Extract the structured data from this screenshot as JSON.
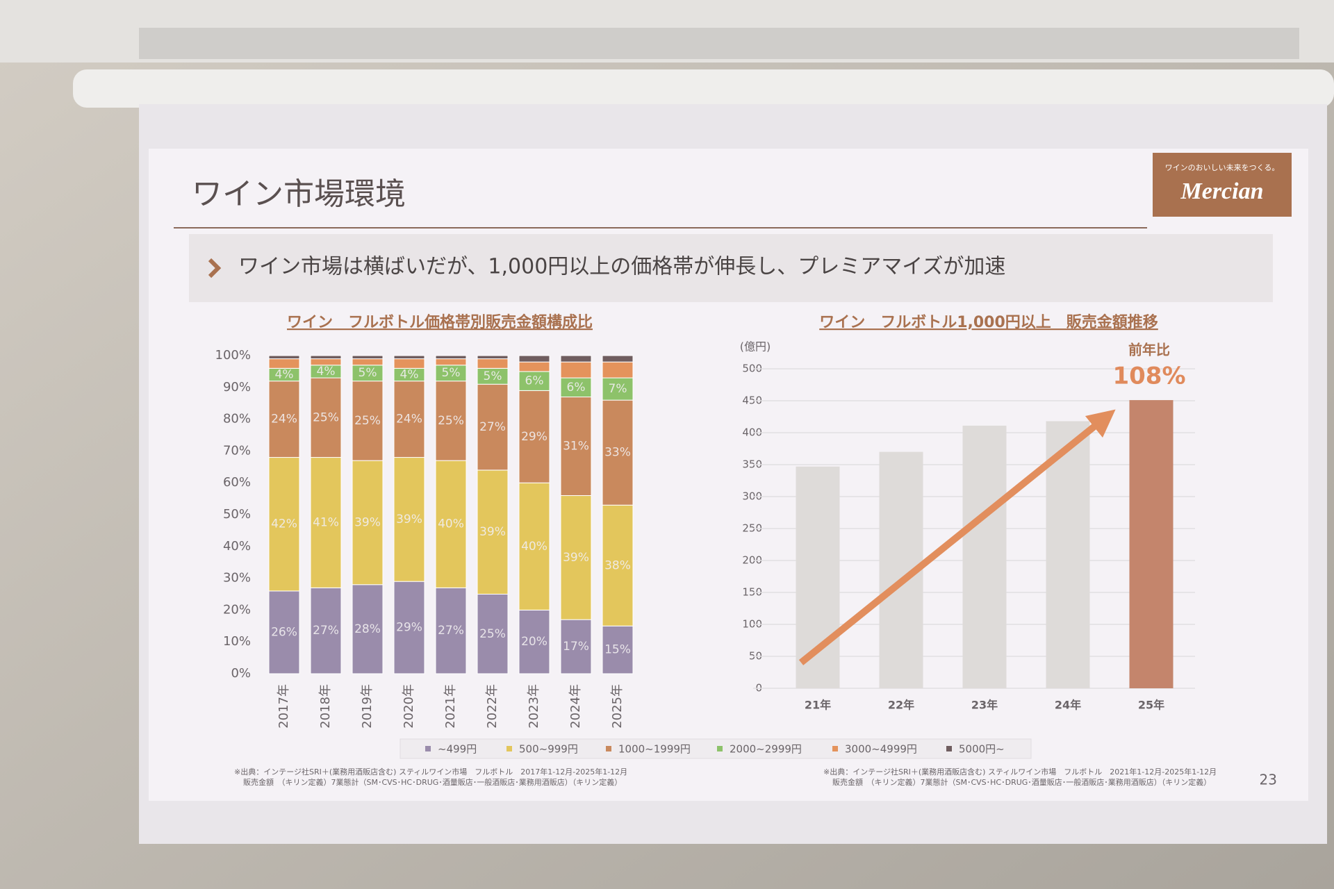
{
  "slide": {
    "title": "ワイン市場環境",
    "bullet": "ワイン市場は横ばいだが、1,000円以上の価格帯が伸長し、プレミアマイズが加速",
    "logo_tagline": "ワインのおいしい未来をつくる。",
    "logo": "Mercian",
    "page_number": "23",
    "footnotes": {
      "left": [
        "※出典：インテージ社SRI＋(業務用酒販店含む) スティルワイン市場　フルボトル　2017年1-12月-2025年1-12月",
        "販売金額　（キリン定義）7業態計（SM･CVS･HC･DRUG･酒量販店･一般酒販店･業務用酒販店）（キリン定義）"
      ],
      "right": [
        "※出典：インテージ社SRI＋(業務用酒販店含む) スティルワイン市場　フルボトル　2021年1-12月-2025年1-12月",
        "販売金額　（キリン定義）7業態計（SM･CVS･HC･DRUG･酒量販店･一般酒販店･業務用酒販店）（キリン定義）"
      ]
    }
  },
  "chart_data": [
    {
      "type": "stacked_bar",
      "title": "ワイン　フルボトル価格帯別販売金額構成比",
      "categories": [
        "2017年",
        "2018年",
        "2019年",
        "2020年",
        "2021年",
        "2022年",
        "2023年",
        "2024年",
        "2025年"
      ],
      "ylim": [
        0,
        100
      ],
      "yticks": [
        {
          "value": 0,
          "label": "0%"
        },
        {
          "value": 10,
          "label": "10%"
        },
        {
          "value": 20,
          "label": "20%"
        },
        {
          "value": 30,
          "label": "30%"
        },
        {
          "value": 40,
          "label": "40%"
        },
        {
          "value": 50,
          "label": "50%"
        },
        {
          "value": 60,
          "label": "60%"
        },
        {
          "value": 70,
          "label": "70%"
        },
        {
          "value": 80,
          "label": "80%"
        },
        {
          "value": 90,
          "label": "90%"
        },
        {
          "value": 100,
          "label": "100%"
        }
      ],
      "legend": "bottom",
      "series": [
        {
          "name": "~499円",
          "color": "#9a8cab",
          "values": [
            26,
            27,
            28,
            29,
            27,
            25,
            20,
            17,
            15
          ],
          "value_labels": [
            "26%",
            "27%",
            "28%",
            "29%",
            "27%",
            "25%",
            "20%",
            "17%",
            "15%"
          ]
        },
        {
          "name": "500~999円",
          "color": "#e3c65c",
          "values": [
            42,
            41,
            39,
            39,
            40,
            39,
            40,
            39,
            38
          ],
          "value_labels": [
            "42%",
            "41%",
            "39%",
            "39%",
            "40%",
            "39%",
            "40%",
            "39%",
            "38%"
          ]
        },
        {
          "name": "1000~1999円",
          "color": "#c9895d",
          "values": [
            24,
            25,
            25,
            24,
            25,
            27,
            29,
            31,
            33
          ],
          "value_labels": [
            "24%",
            "25%",
            "25%",
            "24%",
            "25%",
            "27%",
            "29%",
            "31%",
            "33%"
          ]
        },
        {
          "name": "2000~2999円",
          "color": "#8dc26a",
          "values": [
            4,
            4,
            5,
            4,
            5,
            5,
            6,
            6,
            7
          ],
          "value_labels": [
            "4%",
            "4%",
            "5%",
            "4%",
            "5%",
            "5%",
            "6%",
            "6%",
            "7%"
          ]
        },
        {
          "name": "3000~4999円",
          "color": "#e4935c",
          "values": [
            3,
            2,
            2,
            3,
            2,
            3,
            3,
            5,
            5
          ]
        },
        {
          "name": "5000円~",
          "color": "#6f5d5f",
          "values": [
            1,
            1,
            1,
            1,
            1,
            1,
            2,
            2,
            2
          ]
        }
      ]
    },
    {
      "type": "bar",
      "title": "ワイン　フルボトル1,000円以上　販売金額推移",
      "y_label": "(億円)",
      "categories": [
        "21年",
        "22年",
        "23年",
        "24年",
        "25年"
      ],
      "values": [
        347,
        370,
        411,
        418,
        451
      ],
      "colors": [
        "#dedbd9",
        "#dedbd9",
        "#dedbd9",
        "#dedbd9",
        "#c4856c"
      ],
      "ylim": [
        0,
        500
      ],
      "yticks": [
        0,
        50,
        100,
        150,
        200,
        250,
        300,
        350,
        400,
        450,
        500
      ],
      "grid": true,
      "annotations": [
        "前年比",
        "108%"
      ]
    }
  ]
}
